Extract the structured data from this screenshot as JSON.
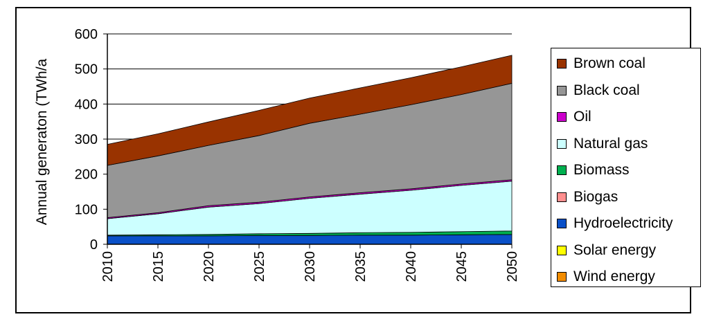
{
  "chart_data": {
    "type": "area",
    "title": "",
    "xlabel": "",
    "ylabel": "Annual generaton (TWh/a",
    "ylim": [
      0,
      600
    ],
    "yticks": [
      0,
      100,
      200,
      300,
      400,
      500,
      600
    ],
    "x": [
      2010,
      2015,
      2020,
      2025,
      2030,
      2035,
      2040,
      2045,
      2050
    ],
    "xtick_labels": [
      "2010",
      "2015",
      "2020",
      "2025",
      "2030",
      "2035",
      "2040",
      "2045",
      "2050"
    ],
    "stacked": true,
    "grid": "horizontal",
    "legend_position": "right",
    "series": [
      {
        "name": "Wind energy",
        "color": "#f28c00",
        "values": [
          0,
          0,
          0,
          0,
          0,
          0,
          0,
          0,
          0
        ]
      },
      {
        "name": "Solar energy",
        "color": "#ffff00",
        "values": [
          0,
          0,
          0,
          0,
          0,
          0,
          0,
          0,
          0
        ]
      },
      {
        "name": "Hydroelectricity",
        "color": "#0a50c8",
        "values": [
          24,
          24,
          24,
          25,
          25,
          26,
          26,
          27,
          28
        ]
      },
      {
        "name": "Biogas",
        "color": "#ff8f8f",
        "values": [
          0,
          0,
          0,
          0,
          0,
          0,
          0,
          0,
          0
        ]
      },
      {
        "name": "Biomass",
        "color": "#00b050",
        "values": [
          2,
          3,
          4,
          5,
          6,
          7,
          8,
          9,
          10
        ]
      },
      {
        "name": "Natural gas",
        "color": "#ccffff",
        "values": [
          47,
          60,
          78,
          86,
          100,
          110,
          120,
          132,
          142
        ]
      },
      {
        "name": "Oil",
        "color": "#cc00cc",
        "values": [
          3,
          3,
          4,
          4,
          4,
          4,
          4,
          4,
          4
        ]
      },
      {
        "name": "Black coal",
        "color": "#969696",
        "values": [
          149,
          162,
          172,
          190,
          210,
          224,
          240,
          255,
          275
        ]
      },
      {
        "name": "Brown coal",
        "color": "#993300",
        "values": [
          60,
          63,
          67,
          72,
          72,
          75,
          77,
          79,
          80
        ]
      }
    ],
    "legend_order": [
      "Brown coal",
      "Black coal",
      "Oil",
      "Natural gas",
      "Biomass",
      "Biogas",
      "Hydroelectricity",
      "Solar energy",
      "Wind energy"
    ]
  }
}
